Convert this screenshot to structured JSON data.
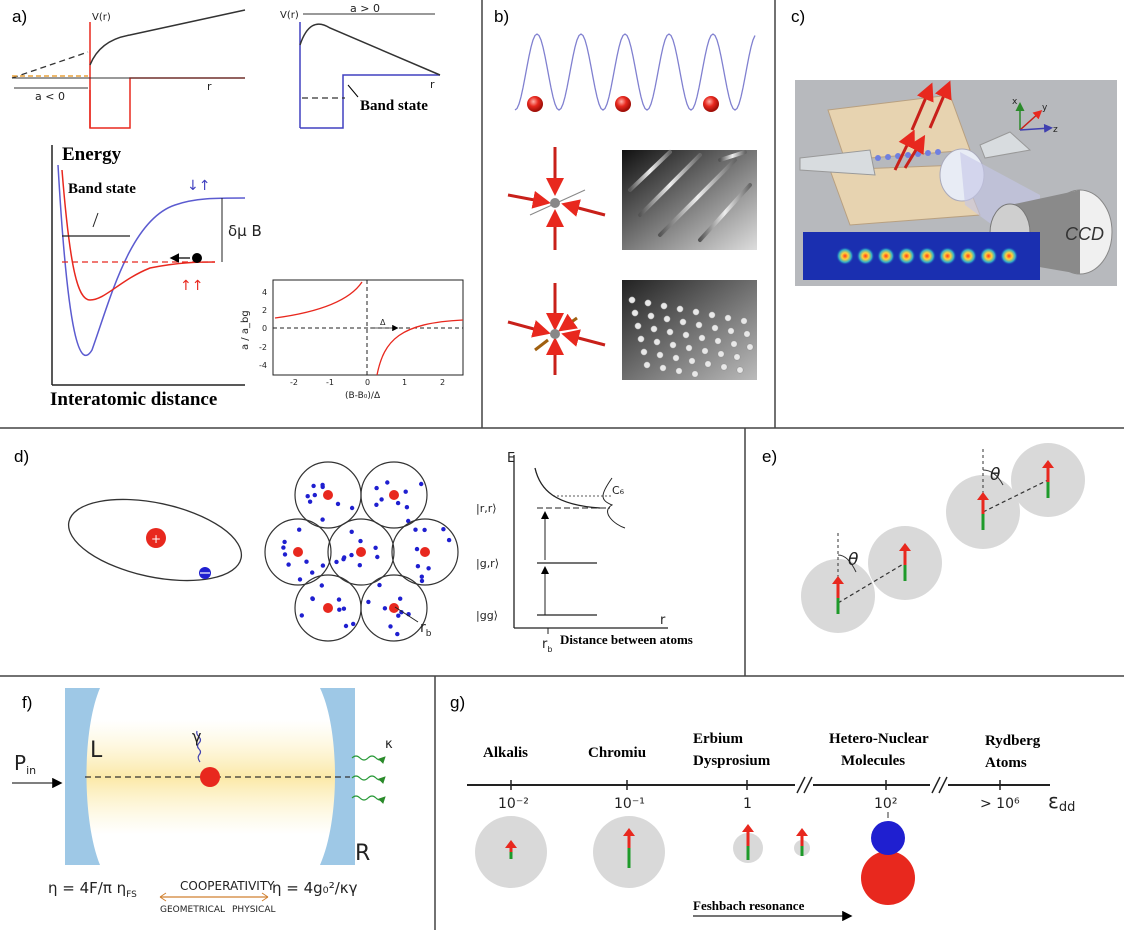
{
  "panels": {
    "a": {
      "label": "a)",
      "v_r_1": "V(r)",
      "v_r_2": "V(r)",
      "a_neg": "a < 0",
      "a_pos": "a > 0",
      "r_1": "r",
      "r_2": "r",
      "band_state_top": "Band state",
      "energy": "Energy",
      "band_state_mid": "Band state",
      "delta_mu_b": "δμ B",
      "interatomic": "Interatomic distance",
      "ratio_axis": "a / a_bg",
      "field_axis": "(B-B₀)/Δ",
      "delta": "Δ",
      "yticks": [
        "4",
        "2",
        "0",
        "-2",
        "-4"
      ],
      "xticks": [
        "-2",
        "-1",
        "0",
        "1",
        "2"
      ]
    },
    "b": {
      "label": "b)"
    },
    "c": {
      "label": "c)",
      "ccd": "CCD",
      "axis_x": "x",
      "axis_y": "y",
      "axis_z": "z"
    },
    "d": {
      "label": "d)",
      "plus": "+",
      "r_b": "r",
      "r_b_sub": "b",
      "e_axis": "E",
      "state_rr": "|r,r⟩",
      "state_gr": "|g,r⟩",
      "state_gg": "|gg⟩",
      "r_axis": "r",
      "c6": "C₆",
      "rb_tick": "r",
      "rb_tick_sub": "b",
      "distance": "Distance between atoms"
    },
    "e": {
      "label": "e)",
      "theta1": "θ",
      "theta2": "θ"
    },
    "f": {
      "label": "f)",
      "p_in": "P",
      "p_in_sub": "in",
      "L": "L",
      "R": "R",
      "gamma": "γ",
      "kappa": "κ",
      "cooperativity": "COOPERATIVITY",
      "geometrical": "GEOMETRICAL",
      "physical": "PHYSICAL",
      "eta_left": "η = 4F/π η",
      "eta_left_sub": "FS",
      "eta_right": "η = 4g₀²/κγ"
    },
    "g": {
      "label": "g)",
      "categories": [
        {
          "name": [
            "Alkalis"
          ],
          "tick": "10⁻²"
        },
        {
          "name": [
            "Chromiu"
          ],
          "tick": "10⁻¹"
        },
        {
          "name": [
            "Erbium",
            "Dysprosium"
          ],
          "tick": "1"
        },
        {
          "name": [
            "Hetero-Nuclear",
            "Molecules"
          ],
          "tick": "10²"
        },
        {
          "name": [
            "Rydberg",
            "Atoms"
          ],
          "tick": "> 10⁶"
        }
      ],
      "axis_label": "ε",
      "axis_label_sub": "dd",
      "break_mark": "//",
      "feshbach": "Feshbach resonance"
    }
  },
  "colors": {
    "red": "#e8281e",
    "blue": "#1f1fd0",
    "purple_line": "#5b5bd0",
    "orange": "#e9a23b",
    "grey_disc": "#d9d9d9",
    "mirror_blue": "#9ec8e6",
    "beam_yellow": "#fdf3c8",
    "green": "#1e9a2a"
  }
}
